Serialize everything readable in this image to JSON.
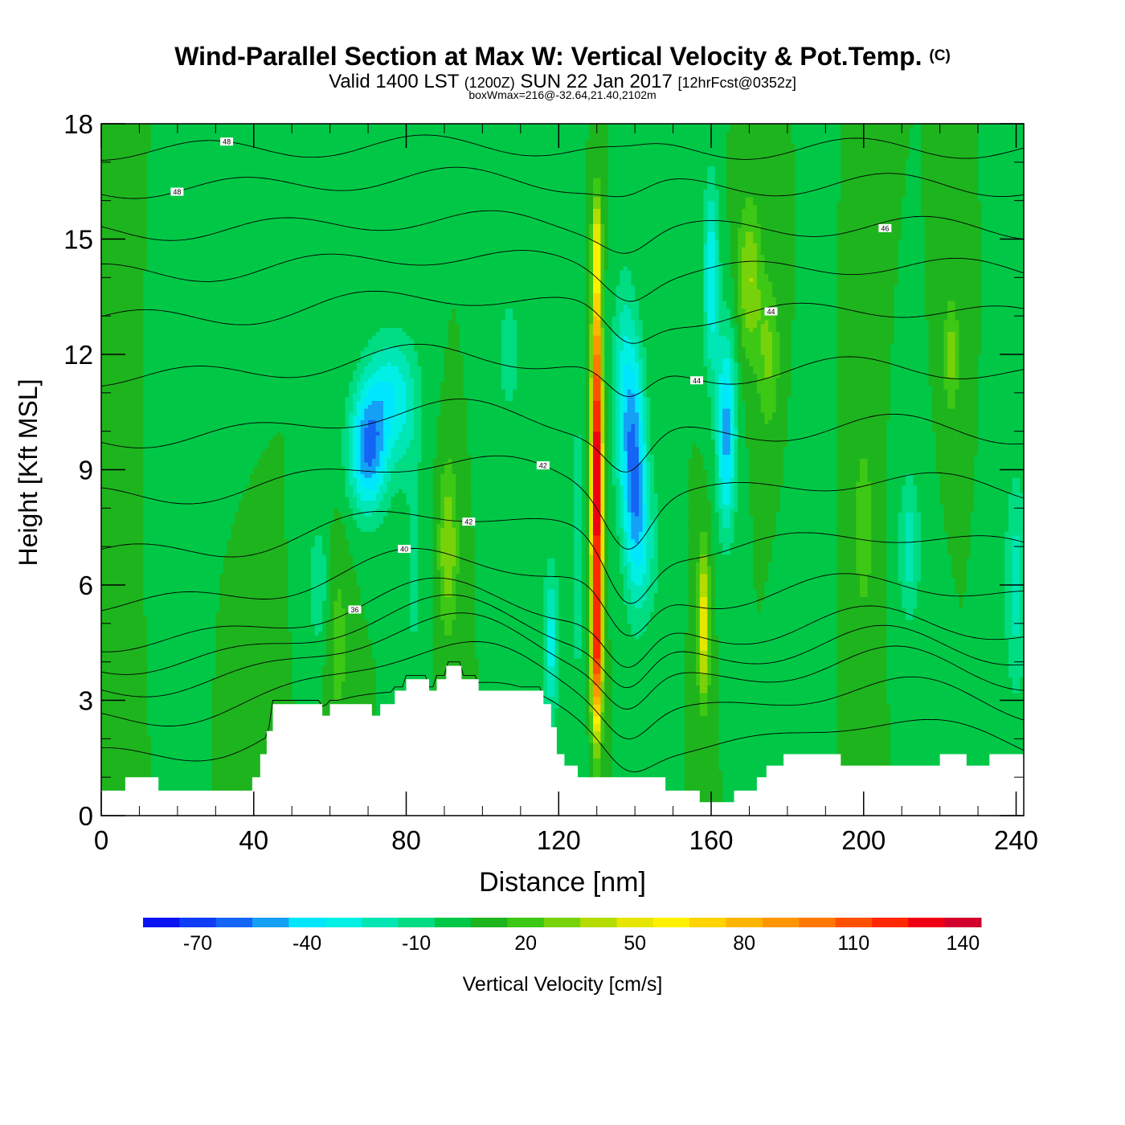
{
  "header": {
    "title_main": "Wind-Parallel Section at Max W: Vertical Velocity & Pot.Temp.",
    "title_copyright": "(C)",
    "valid_prefix": "Valid 1400 LST",
    "valid_utc": "(1200Z)",
    "valid_date": "SUN 22 Jan 2017",
    "forecast_info": "[12hrFcst@0352z]",
    "box_info": "boxWmax=216@-32.64,21.40,2102m"
  },
  "colors": {
    "terrain": "#ffffff",
    "contour": "#000000",
    "palette": [
      "#0a14f0",
      "#0f3cf5",
      "#1464f5",
      "#14a0f5",
      "#00e6ff",
      "#00f0e6",
      "#00e6b4",
      "#00dc82",
      "#00c846",
      "#1eb41e",
      "#3cc814",
      "#78d20a",
      "#b4dc00",
      "#e6e600",
      "#fff000",
      "#ffd200",
      "#ffb400",
      "#ff9600",
      "#ff7800",
      "#ff5000",
      "#ff2800",
      "#f00014",
      "#d2002d"
    ]
  },
  "chart_data": {
    "type": "heatmap",
    "title": "Wind-Parallel Section at Max W: Vertical Velocity & Pot.Temp.",
    "xlabel": "Distance [nm]",
    "ylabel": "Height [Kft MSL]",
    "xlim": [
      0,
      242
    ],
    "ylim": [
      0,
      18
    ],
    "x_ticks": [
      "0",
      "40",
      "80",
      "120",
      "160",
      "200",
      "240"
    ],
    "y_ticks": [
      "0",
      "3",
      "6",
      "9",
      "12",
      "15",
      "18"
    ],
    "colorbar": {
      "label": "Vertical Velocity [cm/s]",
      "ticks": [
        "-70",
        "-40",
        "-10",
        "20",
        "50",
        "80",
        "110",
        "140"
      ],
      "min": -85,
      "max": 145,
      "step": 10
    },
    "background_value": 5,
    "velocity_features": [
      {
        "x": 3,
        "z": 11,
        "sx": 4,
        "sz": 8,
        "amp": 10
      },
      {
        "x": 20,
        "z": 10,
        "sx": 5,
        "sz": 4,
        "amp": -5
      },
      {
        "x": 30,
        "z": 14,
        "sx": 5,
        "sz": 3,
        "amp": -5
      },
      {
        "x": 40,
        "z": 3.5,
        "sx": 4,
        "sz": 2,
        "amp": 10
      },
      {
        "x": 57,
        "z": 6,
        "sx": 3,
        "sz": 1.8,
        "amp": -18
      },
      {
        "x": 62,
        "z": 4.5,
        "sx": 3,
        "sz": 2.5,
        "amp": 15
      },
      {
        "x": 70,
        "z": 9.5,
        "sx": 5,
        "sz": 1.6,
        "amp": -60
      },
      {
        "x": 75,
        "z": 11,
        "sx": 6,
        "sz": 1.5,
        "amp": -30
      },
      {
        "x": 80,
        "z": 10.5,
        "sx": 5,
        "sz": 2,
        "amp": -15
      },
      {
        "x": 82,
        "z": 6,
        "sx": 3,
        "sz": 3,
        "amp": -12
      },
      {
        "x": 91,
        "z": 7,
        "sx": 2.5,
        "sz": 2.2,
        "amp": 30
      },
      {
        "x": 107,
        "z": 12,
        "sx": 5,
        "sz": 3,
        "amp": -12
      },
      {
        "x": 118,
        "z": 4.5,
        "sx": 2,
        "sz": 2,
        "amp": -35
      },
      {
        "x": 125,
        "z": 7,
        "sx": 2,
        "sz": 5,
        "amp": -15
      },
      {
        "x": 130,
        "z": 8,
        "sx": 1.4,
        "sz": 3.5,
        "amp": 130
      },
      {
        "x": 130,
        "z": 12,
        "sx": 1.2,
        "sz": 3,
        "amp": 70
      },
      {
        "x": 130,
        "z": 4,
        "sx": 1.3,
        "sz": 2,
        "amp": 90
      },
      {
        "x": 130,
        "z": 15,
        "sx": 1.2,
        "sz": 1.2,
        "amp": 30
      },
      {
        "x": 140,
        "z": 9,
        "sx": 3,
        "sz": 3,
        "amp": -55
      },
      {
        "x": 137,
        "z": 11,
        "sx": 3,
        "sz": 3,
        "amp": -30
      },
      {
        "x": 143,
        "z": 7,
        "sx": 4,
        "sz": 2,
        "amp": -20
      },
      {
        "x": 158,
        "z": 5,
        "sx": 1.5,
        "sz": 2,
        "amp": 50
      },
      {
        "x": 164,
        "z": 10,
        "sx": 2.5,
        "sz": 2.5,
        "amp": -55
      },
      {
        "x": 160,
        "z": 14,
        "sx": 2,
        "sz": 2.5,
        "amp": -40
      },
      {
        "x": 170,
        "z": 14,
        "sx": 3,
        "sz": 2,
        "amp": 30
      },
      {
        "x": 175,
        "z": 12,
        "sx": 3,
        "sz": 2,
        "amp": 22
      },
      {
        "x": 185,
        "z": 8,
        "sx": 4,
        "sz": 3,
        "amp": -5
      },
      {
        "x": 200,
        "z": 7.5,
        "sx": 3,
        "sz": 3,
        "amp": 15
      },
      {
        "x": 212,
        "z": 7,
        "sx": 3,
        "sz": 2,
        "amp": -25
      },
      {
        "x": 223,
        "z": 12,
        "sx": 2,
        "sz": 1.5,
        "amp": 25
      },
      {
        "x": 240,
        "z": 6,
        "sx": 3,
        "sz": 3,
        "amp": -25
      }
    ],
    "terrain_profile": [
      {
        "x": 0,
        "h": 0.65
      },
      {
        "x": 6.3,
        "h": 1.0
      },
      {
        "x": 15,
        "h": 0.65
      },
      {
        "x": 39.6,
        "h": 1.0
      },
      {
        "x": 41.7,
        "h": 1.6
      },
      {
        "x": 43.4,
        "h": 2.2
      },
      {
        "x": 45,
        "h": 2.9
      },
      {
        "x": 58,
        "h": 2.6
      },
      {
        "x": 60,
        "h": 2.9
      },
      {
        "x": 71,
        "h": 2.6
      },
      {
        "x": 73.2,
        "h": 2.9
      },
      {
        "x": 77,
        "h": 3.25
      },
      {
        "x": 80,
        "h": 3.55
      },
      {
        "x": 86,
        "h": 3.25
      },
      {
        "x": 88,
        "h": 3.55
      },
      {
        "x": 90.5,
        "h": 3.9
      },
      {
        "x": 94.5,
        "h": 3.55
      },
      {
        "x": 99,
        "h": 3.25
      },
      {
        "x": 116,
        "h": 2.9
      },
      {
        "x": 118,
        "h": 2.3
      },
      {
        "x": 119.5,
        "h": 1.6
      },
      {
        "x": 121.5,
        "h": 1.3
      },
      {
        "x": 125,
        "h": 1.0
      },
      {
        "x": 148,
        "h": 0.65
      },
      {
        "x": 157,
        "h": 0.35
      },
      {
        "x": 166,
        "h": 0.65
      },
      {
        "x": 172,
        "h": 1.0
      },
      {
        "x": 174.5,
        "h": 1.3
      },
      {
        "x": 179,
        "h": 1.6
      },
      {
        "x": 194,
        "h": 1.3
      },
      {
        "x": 220,
        "h": 1.6
      },
      {
        "x": 227,
        "h": 1.3
      },
      {
        "x": 233,
        "h": 1.6
      }
    ],
    "theta_contours": [
      {
        "base": 1.5,
        "hill": 1.3,
        "well": 0.4,
        "value": ""
      },
      {
        "base": 2.5,
        "hill": 1.2,
        "well": 0.5,
        "value": ""
      },
      {
        "base": 3.3,
        "hill": 1.1,
        "well": 0.6,
        "value": ""
      },
      {
        "base": 3.9,
        "hill": 1.0,
        "well": 0.7,
        "value": ""
      },
      {
        "base": 4.5,
        "hill": 0.9,
        "well": 0.8,
        "value": "36"
      },
      {
        "base": 5.5,
        "hill": 0.8,
        "well": 0.9,
        "value": "40"
      },
      {
        "base": 6.8,
        "hill": 0.7,
        "well": 1.0,
        "value": "42"
      },
      {
        "base": 8.3,
        "hill": 0.6,
        "well": 0.9,
        "value": "42"
      },
      {
        "base": 9.8,
        "hill": 0.5,
        "well": 0.7,
        "value": ""
      },
      {
        "base": 11.4,
        "hill": 0.4,
        "well": 0.6,
        "value": "44"
      },
      {
        "base": 12.9,
        "hill": 0.4,
        "well": 0.5,
        "value": "44"
      },
      {
        "base": 14.1,
        "hill": 0.3,
        "well": 0.4,
        "value": ""
      },
      {
        "base": 15.2,
        "hill": 0.2,
        "well": 0.3,
        "value": "46"
      },
      {
        "base": 16.3,
        "hill": 0.2,
        "well": 0.2,
        "value": "48"
      },
      {
        "base": 17.3,
        "hill": 0.1,
        "well": 0.1,
        "value": "48"
      }
    ]
  }
}
